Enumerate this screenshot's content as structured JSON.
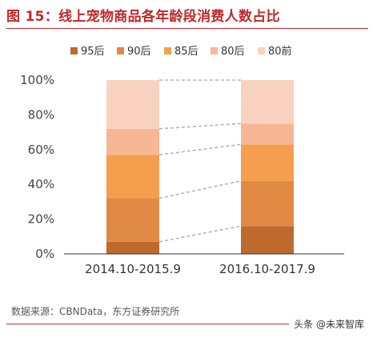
{
  "header": {
    "title": "图 15：线上宠物商品各年龄段消费人数占比"
  },
  "footer": {
    "source": "数据来源：CBNData，东方证券研究所",
    "watermark": "头条 @未来智库"
  },
  "chart_data": {
    "type": "bar",
    "stacked": true,
    "percent": true,
    "categories": [
      "2014.10-2015.9",
      "2016.10-2017.9"
    ],
    "series": [
      {
        "name": "95后",
        "color": "#bf6a2d",
        "values": [
          7,
          16
        ]
      },
      {
        "name": "90后",
        "color": "#e08a44",
        "values": [
          25,
          26
        ]
      },
      {
        "name": "85后",
        "color": "#f59e4d",
        "values": [
          25,
          21
        ]
      },
      {
        "name": "80后",
        "color": "#f8b794",
        "values": [
          15,
          12
        ]
      },
      {
        "name": "80前",
        "color": "#fad3c0",
        "values": [
          28,
          25
        ]
      }
    ],
    "ylim": [
      0,
      100
    ],
    "yticks": [
      0,
      20,
      40,
      60,
      80,
      100
    ],
    "ytick_labels": [
      "0%",
      "20%",
      "40%",
      "60%",
      "80%",
      "100%"
    ],
    "connector_lines": true,
    "legend_position": "top",
    "grid": false
  }
}
